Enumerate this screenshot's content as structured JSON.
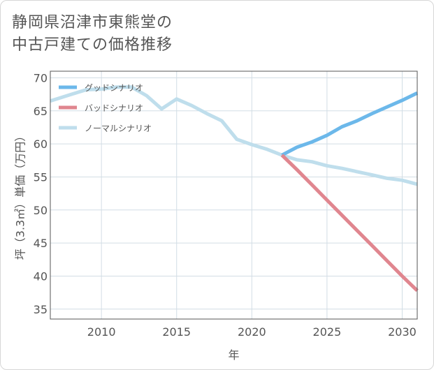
{
  "title_lines": [
    "静岡県沼津市東熊堂の",
    "中古戸建ての価格推移"
  ],
  "chart_data": {
    "type": "line",
    "title": "静岡県沼津市東熊堂の中古戸建ての価格推移",
    "xlabel": "年",
    "ylabel": "坪（3.3㎡）単価（万円）",
    "xlim": [
      2006.6,
      2031
    ],
    "ylim": [
      33.5,
      71
    ],
    "xticks": [
      2010,
      2015,
      2020,
      2025,
      2030
    ],
    "yticks": [
      35,
      40,
      45,
      50,
      55,
      60,
      65,
      70
    ],
    "grid": true,
    "legend_position": "top-left",
    "series": [
      {
        "name": "グッドシナリオ",
        "color": "#6cb8ea",
        "x": [
          2022,
          2023,
          2024,
          2025,
          2026,
          2027,
          2028,
          2029,
          2030,
          2031
        ],
        "y": [
          58.3,
          59.5,
          60.3,
          61.3,
          62.6,
          63.5,
          64.6,
          65.6,
          66.6,
          67.7
        ]
      },
      {
        "name": "バッドシナリオ",
        "color": "#e0868f",
        "x": [
          2022,
          2023,
          2024,
          2025,
          2026,
          2027,
          2028,
          2029,
          2030,
          2031
        ],
        "y": [
          58.3,
          56.1,
          53.8,
          51.5,
          49.2,
          46.9,
          44.6,
          42.3,
          40.0,
          37.8
        ]
      },
      {
        "name": "ノーマルシナリオ",
        "color": "#bfdeec",
        "x": [
          2006.6,
          2008,
          2009,
          2010,
          2011,
          2012,
          2013,
          2014,
          2015,
          2016,
          2017,
          2018,
          2019,
          2020,
          2021,
          2022,
          2023,
          2024,
          2025,
          2026,
          2027,
          2028,
          2029,
          2030,
          2031
        ],
        "y": [
          66.5,
          67.5,
          68.2,
          68.3,
          68.6,
          68.6,
          67.3,
          65.3,
          66.8,
          65.8,
          64.6,
          63.5,
          60.7,
          59.9,
          59.2,
          58.3,
          57.6,
          57.3,
          56.7,
          56.3,
          55.8,
          55.3,
          54.8,
          54.5,
          53.9
        ]
      }
    ]
  }
}
